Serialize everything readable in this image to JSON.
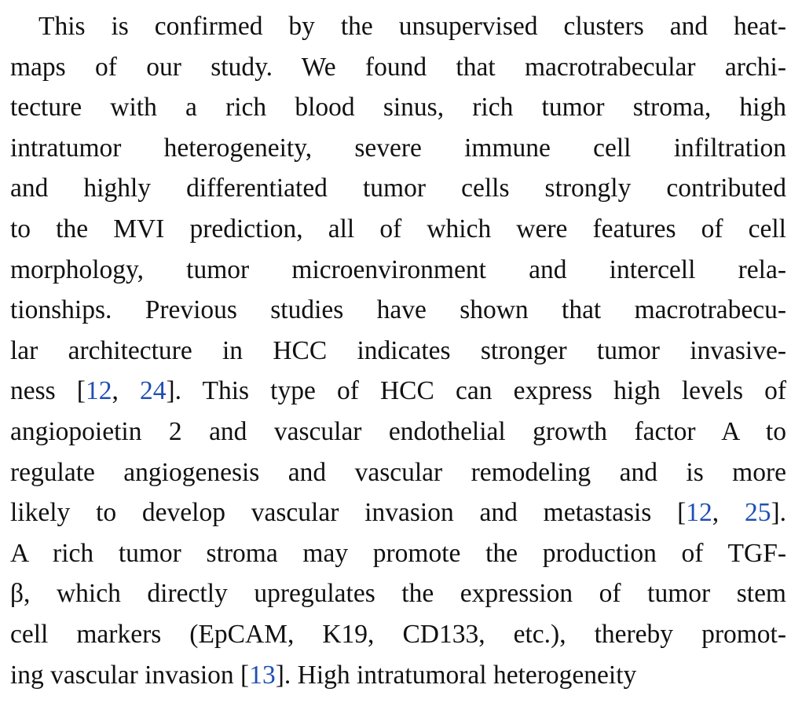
{
  "paragraph": {
    "lines": [
      "This is confirmed by the unsupervised clusters and heat-",
      "maps of our study. We found that macrotrabecular archi-",
      "tecture with a rich blood sinus, rich tumor stroma, high",
      "intratumor heterogeneity, severe immune cell infiltration",
      "and highly differentiated tumor cells strongly contributed",
      "to the MVI prediction, all of which were features of cell",
      "morphology, tumor microenvironment and intercell rela-",
      "tionships. Previous studies have shown that macrotrabecu-",
      "lar architecture in HCC indicates stronger tumor invasive-",
      {
        "before": "ness [",
        "cite1": "12",
        "sep": ", ",
        "cite2": "24",
        "after": "]. This type of HCC can express high levels of"
      },
      "angiopoietin 2 and vascular endothelial growth factor A to",
      "regulate angiogenesis and vascular remodeling and is more",
      {
        "before": "likely to develop vascular invasion and metastasis [",
        "cite1": "12",
        "sep": ", ",
        "cite2": "25",
        "after": "]."
      },
      "A rich tumor stroma may promote the production of TGF-",
      "β, which directly upregulates the expression of tumor stem",
      "cell markers (EpCAM, K19, CD133, etc.), thereby promot-",
      {
        "before": "ing vascular invasion [",
        "cite1": "13",
        "after": "]. High intratumoral heterogeneity"
      }
    ]
  },
  "colors": {
    "text": "#111111",
    "citation": "#1f4fb3",
    "background": "#ffffff"
  }
}
